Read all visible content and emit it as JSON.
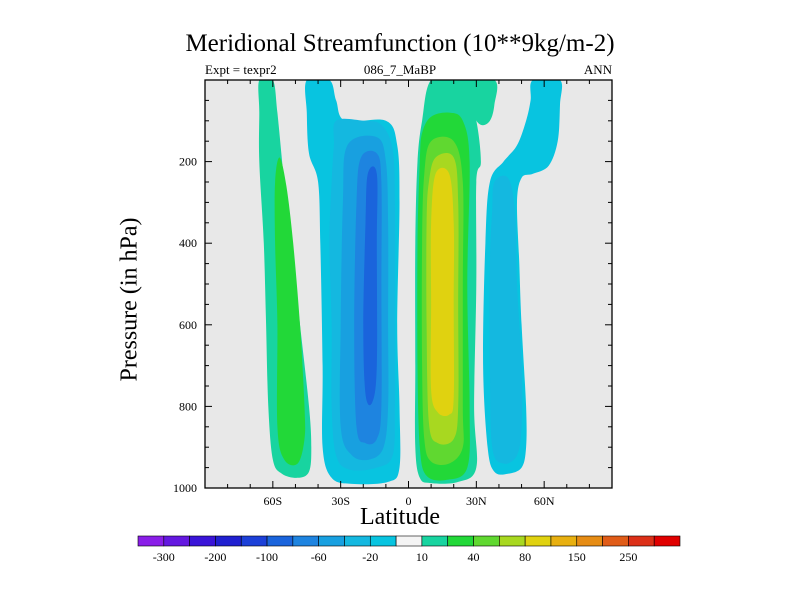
{
  "chart_data": {
    "type": "heatmap",
    "title": "Meridional Streamfunction (10**9kg/m-2)",
    "subtitle_left": "Expt = texpr2",
    "subtitle_center": "086_7_MaBP",
    "subtitle_right": "ANN",
    "xlabel": "Latitude",
    "ylabel": "Pressure (in hPa)",
    "xlim": [
      -90,
      90
    ],
    "ylim": [
      1000,
      0
    ],
    "x_ticks": [
      {
        "value": -60,
        "label": "60S"
      },
      {
        "value": -30,
        "label": "30S"
      },
      {
        "value": 0,
        "label": "0"
      },
      {
        "value": 30,
        "label": "30N"
      },
      {
        "value": 60,
        "label": "60N"
      }
    ],
    "y_ticks": [
      {
        "value": 200,
        "label": "200"
      },
      {
        "value": 400,
        "label": "400"
      },
      {
        "value": 600,
        "label": "600"
      },
      {
        "value": 800,
        "label": "800"
      },
      {
        "value": 1000,
        "label": "1000"
      }
    ],
    "background_color": "#e8e8e8",
    "contour_levels": [
      -300,
      -250,
      -200,
      -150,
      -100,
      -80,
      -60,
      -40,
      -20,
      -10,
      10,
      20,
      40,
      60,
      80,
      100,
      150,
      200,
      250,
      300
    ],
    "colorbar": {
      "colors": [
        "#8a1ee8",
        "#6418e0",
        "#3a14d8",
        "#2020d0",
        "#1c40d8",
        "#1a64dc",
        "#1e84e0",
        "#18a0e0",
        "#14b8e0",
        "#08c4e0",
        "#f4f4f4",
        "#18d4a0",
        "#22d838",
        "#60d830",
        "#a8d820",
        "#e0d210",
        "#e8b010",
        "#e68c14",
        "#e05c18",
        "#dc3018",
        "#e00000"
      ],
      "labels": [
        "-300",
        "-200",
        "-100",
        "-60",
        "-20",
        "10",
        "40",
        "80",
        "150",
        "250"
      ]
    },
    "regions": [
      {
        "name": "southern-polar-cell",
        "sign": "positive",
        "color": "#18d4a0",
        "points": [
          [
            -66,
            0
          ],
          [
            -60,
            0
          ],
          [
            -58,
            80
          ],
          [
            -55,
            250
          ],
          [
            -52,
            400
          ],
          [
            -48,
            600
          ],
          [
            -44,
            800
          ],
          [
            -43,
            900
          ],
          [
            -44,
            960
          ],
          [
            -49,
            975
          ],
          [
            -56,
            965
          ],
          [
            -60,
            930
          ],
          [
            -62,
            800
          ],
          [
            -63,
            600
          ],
          [
            -64,
            400
          ],
          [
            -66,
            200
          ],
          [
            -66,
            80
          ]
        ]
      },
      {
        "name": "southern-polar-cell-core",
        "sign": "positive",
        "color": "#22d838",
        "points": [
          [
            -57,
            190
          ],
          [
            -54,
            260
          ],
          [
            -51,
            400
          ],
          [
            -48,
            600
          ],
          [
            -46,
            800
          ],
          [
            -46,
            880
          ],
          [
            -49,
            940
          ],
          [
            -55,
            930
          ],
          [
            -58,
            850
          ],
          [
            -58,
            600
          ],
          [
            -59,
            400
          ],
          [
            -59,
            250
          ]
        ]
      },
      {
        "name": "southern-ferrel-cell",
        "sign": "negative",
        "color": "#08c4e0",
        "points": [
          [
            -45,
            0
          ],
          [
            -35,
            0
          ],
          [
            -32,
            50
          ],
          [
            -28,
            100
          ],
          [
            -10,
            100
          ],
          [
            -5,
            160
          ],
          [
            -4,
            300
          ],
          [
            -5,
            600
          ],
          [
            -4,
            800
          ],
          [
            -4,
            950
          ],
          [
            -9,
            985
          ],
          [
            -25,
            990
          ],
          [
            -34,
            975
          ],
          [
            -38,
            900
          ],
          [
            -38,
            700
          ],
          [
            -39,
            400
          ],
          [
            -40,
            250
          ],
          [
            -44,
            180
          ],
          [
            -45,
            80
          ]
        ]
      },
      {
        "name": "southern-ferrel-level-2",
        "sign": "negative",
        "color": "#14b8e0",
        "points": [
          [
            -32,
            100
          ],
          [
            -20,
            100
          ],
          [
            -12,
            110
          ],
          [
            -7,
            170
          ],
          [
            -6,
            300
          ],
          [
            -6,
            600
          ],
          [
            -6,
            800
          ],
          [
            -7,
            920
          ],
          [
            -14,
            950
          ],
          [
            -26,
            955
          ],
          [
            -32,
            920
          ],
          [
            -34,
            800
          ],
          [
            -34,
            600
          ],
          [
            -35,
            400
          ],
          [
            -34,
            250
          ],
          [
            -33,
            160
          ]
        ]
      },
      {
        "name": "southern-ferrel-level-3",
        "sign": "negative",
        "color": "#18a0e0",
        "points": [
          [
            -27,
            160
          ],
          [
            -14,
            140
          ],
          [
            -10,
            200
          ],
          [
            -9,
            350
          ],
          [
            -9,
            600
          ],
          [
            -9,
            800
          ],
          [
            -11,
            900
          ],
          [
            -17,
            930
          ],
          [
            -25,
            920
          ],
          [
            -30,
            850
          ],
          [
            -30,
            600
          ],
          [
            -29,
            300
          ]
        ]
      },
      {
        "name": "southern-ferrel-level-4",
        "sign": "negative",
        "color": "#1e84e0",
        "points": [
          [
            -21,
            190
          ],
          [
            -14,
            180
          ],
          [
            -12,
            250
          ],
          [
            -12,
            500
          ],
          [
            -12,
            800
          ],
          [
            -14,
            880
          ],
          [
            -19,
            890
          ],
          [
            -23,
            850
          ],
          [
            -24,
            600
          ],
          [
            -23,
            300
          ]
        ]
      },
      {
        "name": "southern-ferrel-core",
        "sign": "negative",
        "color": "#1a64dc",
        "points": [
          [
            -18,
            230
          ],
          [
            -14,
            230
          ],
          [
            -14,
            400
          ],
          [
            -14,
            700
          ],
          [
            -16,
            790
          ],
          [
            -19,
            770
          ],
          [
            -20,
            600
          ],
          [
            -19,
            350
          ]
        ]
      },
      {
        "name": "northern-hadley-cell",
        "sign": "positive",
        "color": "#18d4a0",
        "points": [
          [
            10,
            0
          ],
          [
            22,
            0
          ],
          [
            26,
            40
          ],
          [
            30,
            100
          ],
          [
            32,
            200
          ],
          [
            30,
            250
          ],
          [
            30,
            500
          ],
          [
            29,
            800
          ],
          [
            30,
            950
          ],
          [
            22,
            985
          ],
          [
            10,
            988
          ],
          [
            5,
            975
          ],
          [
            3,
            900
          ],
          [
            3,
            700
          ],
          [
            3,
            400
          ],
          [
            4,
            200
          ],
          [
            6,
            100
          ]
        ]
      },
      {
        "name": "northern-hadley-level-2",
        "sign": "positive",
        "color": "#22d838",
        "points": [
          [
            10,
            90
          ],
          [
            18,
            80
          ],
          [
            24,
            100
          ],
          [
            27,
            200
          ],
          [
            26,
            500
          ],
          [
            27,
            800
          ],
          [
            26,
            950
          ],
          [
            17,
            980
          ],
          [
            8,
            970
          ],
          [
            5,
            900
          ],
          [
            4,
            700
          ],
          [
            4,
            400
          ],
          [
            5,
            200
          ],
          [
            6,
            130
          ]
        ]
      },
      {
        "name": "northern-hadley-level-3",
        "sign": "positive",
        "color": "#60d830",
        "points": [
          [
            10,
            150
          ],
          [
            20,
            150
          ],
          [
            24,
            250
          ],
          [
            24,
            500
          ],
          [
            24,
            800
          ],
          [
            24,
            900
          ],
          [
            18,
            940
          ],
          [
            10,
            935
          ],
          [
            7,
            880
          ],
          [
            6,
            700
          ],
          [
            6,
            400
          ],
          [
            7,
            230
          ]
        ]
      },
      {
        "name": "northern-hadley-level-4",
        "sign": "positive",
        "color": "#a8d820",
        "points": [
          [
            12,
            190
          ],
          [
            20,
            190
          ],
          [
            22,
            300
          ],
          [
            22,
            550
          ],
          [
            22,
            800
          ],
          [
            20,
            880
          ],
          [
            13,
            890
          ],
          [
            9,
            840
          ],
          [
            8,
            600
          ],
          [
            8,
            350
          ],
          [
            9,
            250
          ]
        ]
      },
      {
        "name": "northern-hadley-core",
        "sign": "positive",
        "color": "#e0d210",
        "points": [
          [
            12,
            230
          ],
          [
            18,
            230
          ],
          [
            20,
            350
          ],
          [
            20,
            550
          ],
          [
            20,
            780
          ],
          [
            18,
            820
          ],
          [
            13,
            815
          ],
          [
            10,
            760
          ],
          [
            10,
            550
          ],
          [
            10,
            350
          ]
        ]
      },
      {
        "name": "northern-high-lat-band",
        "sign": "positive",
        "color": "#18d4a0",
        "points": [
          [
            22,
            0
          ],
          [
            38,
            0
          ],
          [
            38,
            60
          ],
          [
            36,
            100
          ],
          [
            32,
            110
          ],
          [
            28,
            80
          ]
        ]
      },
      {
        "name": "northern-ferrel-cell",
        "sign": "negative",
        "color": "#08c4e0",
        "points": [
          [
            55,
            0
          ],
          [
            67,
            0
          ],
          [
            67,
            60
          ],
          [
            66,
            150
          ],
          [
            62,
            210
          ],
          [
            55,
            230
          ],
          [
            50,
            240
          ],
          [
            48,
            300
          ],
          [
            49,
            450
          ],
          [
            50,
            600
          ],
          [
            52,
            800
          ],
          [
            52,
            900
          ],
          [
            50,
            950
          ],
          [
            44,
            965
          ],
          [
            38,
            960
          ],
          [
            35,
            900
          ],
          [
            33,
            700
          ],
          [
            34,
            400
          ],
          [
            36,
            250
          ],
          [
            42,
            200
          ],
          [
            48,
            160
          ],
          [
            52,
            100
          ],
          [
            54,
            50
          ]
        ]
      },
      {
        "name": "northern-ferrel-level-2",
        "sign": "negative",
        "color": "#14b8e0",
        "points": [
          [
            38,
            250
          ],
          [
            44,
            240
          ],
          [
            47,
            320
          ],
          [
            48,
            500
          ],
          [
            50,
            700
          ],
          [
            50,
            850
          ],
          [
            48,
            920
          ],
          [
            42,
            940
          ],
          [
            37,
            900
          ],
          [
            36,
            700
          ],
          [
            36,
            450
          ],
          [
            37,
            320
          ]
        ]
      }
    ]
  }
}
